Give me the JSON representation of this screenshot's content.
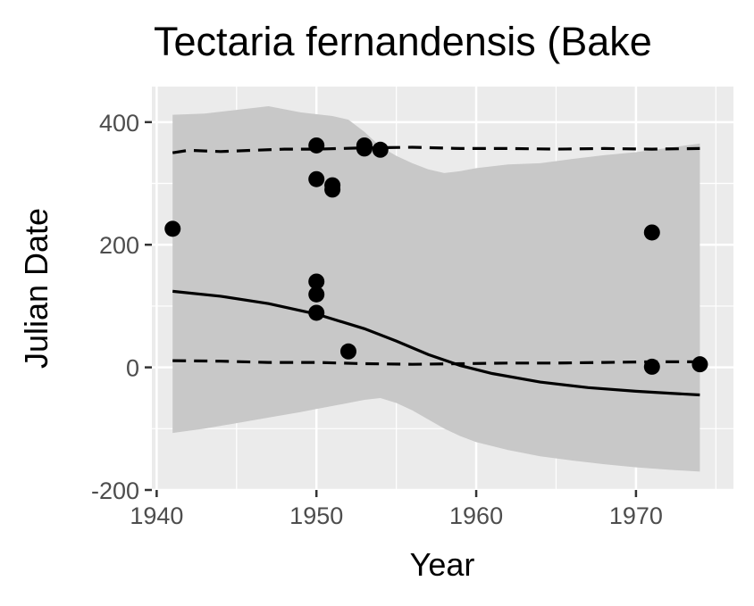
{
  "chart_data": {
    "type": "scatter",
    "title": "Tectaria fernandensis (Bake",
    "xlabel": "Year",
    "ylabel": "Julian Date",
    "xlim": [
      1939.7,
      1976.1
    ],
    "ylim": [
      -200,
      458
    ],
    "x_ticks": [
      1940,
      1950,
      1960,
      1970
    ],
    "x_tick_labels": [
      "1940",
      "1950",
      "1960",
      "1970"
    ],
    "y_ticks": [
      -200,
      0,
      200,
      400
    ],
    "y_tick_labels": [
      "-200",
      "0",
      "200",
      "400"
    ],
    "grid": true,
    "legend": "none",
    "colors": {
      "panel": "#ebebeb",
      "grid": "#ffffff",
      "ribbon": "#c8c8c8",
      "points": "#000000",
      "lines": "#000000",
      "tick_text": "#4d4d4d",
      "axis_ticks": "#333333"
    },
    "points": [
      {
        "x": 1941,
        "y": 226
      },
      {
        "x": 1950,
        "y": 362
      },
      {
        "x": 1950,
        "y": 307
      },
      {
        "x": 1950,
        "y": 140
      },
      {
        "x": 1950,
        "y": 119
      },
      {
        "x": 1950,
        "y": 89
      },
      {
        "x": 1951,
        "y": 297
      },
      {
        "x": 1951,
        "y": 290
      },
      {
        "x": 1952,
        "y": 26
      },
      {
        "x": 1953,
        "y": 362
      },
      {
        "x": 1953,
        "y": 357
      },
      {
        "x": 1954,
        "y": 355
      },
      {
        "x": 1971,
        "y": 220
      },
      {
        "x": 1971,
        "y": 1
      },
      {
        "x": 1974,
        "y": 5
      }
    ],
    "fit_line": [
      [
        1941,
        124
      ],
      [
        1944,
        116
      ],
      [
        1947,
        104
      ],
      [
        1950,
        87
      ],
      [
        1953,
        63
      ],
      [
        1955,
        43
      ],
      [
        1957,
        21
      ],
      [
        1959,
        3
      ],
      [
        1961,
        -10
      ],
      [
        1964,
        -24
      ],
      [
        1967,
        -33
      ],
      [
        1970,
        -39
      ],
      [
        1972,
        -42
      ],
      [
        1974,
        -45
      ]
    ],
    "upper_dashed": [
      [
        1941,
        350
      ],
      [
        1942,
        354
      ],
      [
        1944,
        352
      ],
      [
        1946,
        354
      ],
      [
        1948,
        356
      ],
      [
        1950,
        356
      ],
      [
        1953,
        358
      ],
      [
        1956,
        359
      ],
      [
        1959,
        357
      ],
      [
        1962,
        357
      ],
      [
        1965,
        356
      ],
      [
        1968,
        357
      ],
      [
        1971,
        356
      ],
      [
        1974,
        357
      ]
    ],
    "lower_dashed": [
      [
        1941,
        11
      ],
      [
        1944,
        10
      ],
      [
        1947,
        8
      ],
      [
        1950,
        8
      ],
      [
        1953,
        6
      ],
      [
        1956,
        5
      ],
      [
        1959,
        6
      ],
      [
        1962,
        7
      ],
      [
        1965,
        7
      ],
      [
        1968,
        8
      ],
      [
        1971,
        9
      ],
      [
        1974,
        9
      ]
    ],
    "ribbon_upper": [
      [
        1941,
        412
      ],
      [
        1943,
        414
      ],
      [
        1945,
        420
      ],
      [
        1947,
        426
      ],
      [
        1949,
        416
      ],
      [
        1951,
        410
      ],
      [
        1952,
        404
      ],
      [
        1953,
        384
      ],
      [
        1954,
        360
      ],
      [
        1955,
        345
      ],
      [
        1956,
        333
      ],
      [
        1957,
        323
      ],
      [
        1958,
        317
      ],
      [
        1959,
        320
      ],
      [
        1960,
        325
      ],
      [
        1962,
        331
      ],
      [
        1964,
        333
      ],
      [
        1966,
        340
      ],
      [
        1968,
        346
      ],
      [
        1970,
        351
      ],
      [
        1972,
        358
      ],
      [
        1974,
        365
      ]
    ],
    "ribbon_lower": [
      [
        1941,
        -107
      ],
      [
        1943,
        -100
      ],
      [
        1945,
        -91
      ],
      [
        1947,
        -82
      ],
      [
        1949,
        -73
      ],
      [
        1950,
        -68
      ],
      [
        1951,
        -63
      ],
      [
        1952,
        -58
      ],
      [
        1953,
        -53
      ],
      [
        1954,
        -50
      ],
      [
        1955,
        -58
      ],
      [
        1956,
        -70
      ],
      [
        1957,
        -85
      ],
      [
        1958,
        -100
      ],
      [
        1959,
        -112
      ],
      [
        1960,
        -122
      ],
      [
        1962,
        -135
      ],
      [
        1964,
        -145
      ],
      [
        1966,
        -152
      ],
      [
        1968,
        -158
      ],
      [
        1970,
        -163
      ],
      [
        1972,
        -167
      ],
      [
        1974,
        -170
      ]
    ]
  }
}
